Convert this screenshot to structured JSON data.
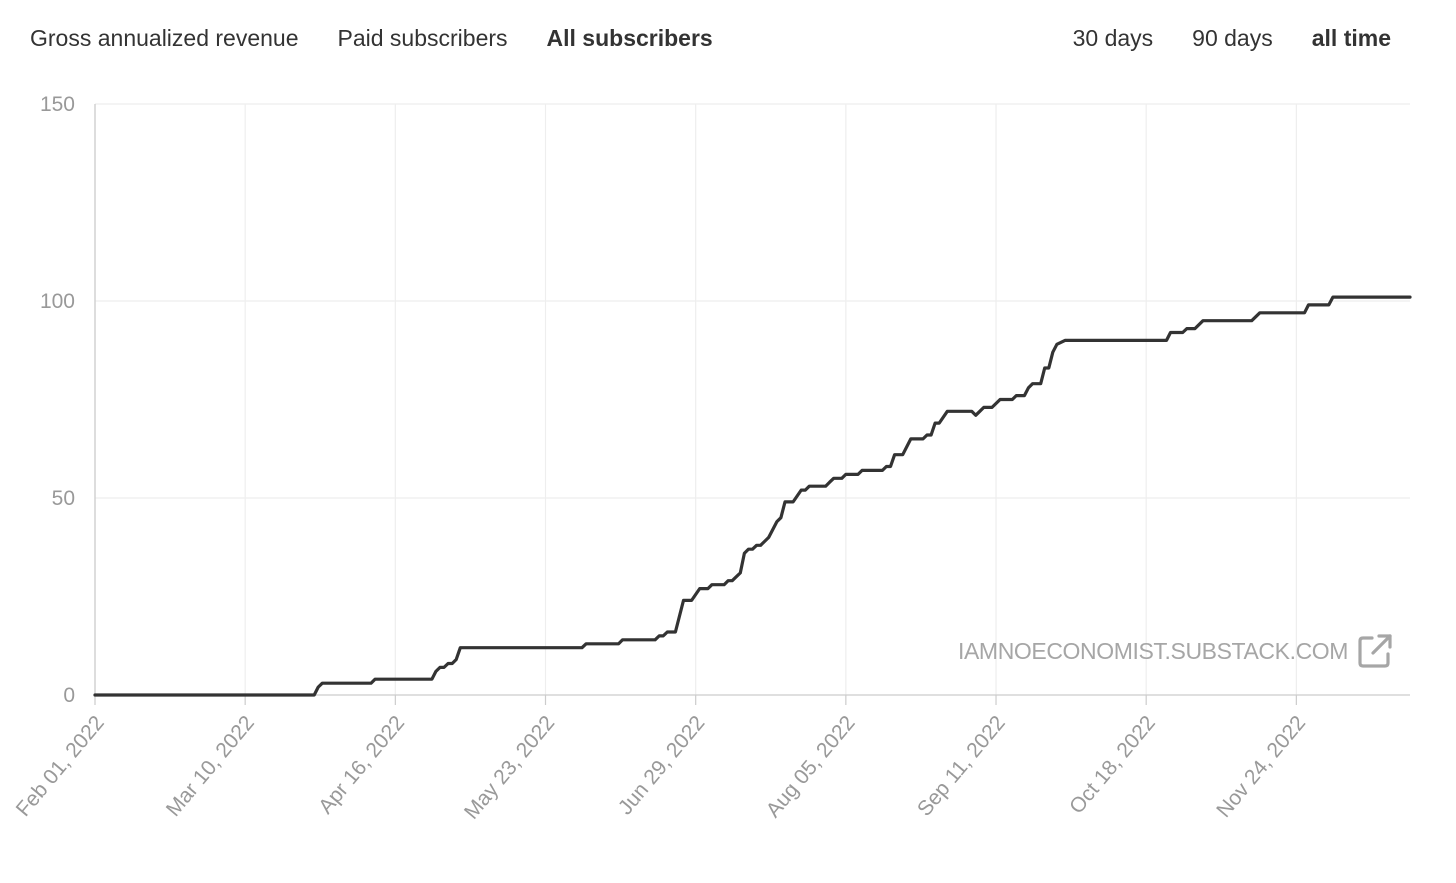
{
  "tabs_metric": [
    {
      "label": "Gross annualized revenue",
      "active": false
    },
    {
      "label": "Paid subscribers",
      "active": false
    },
    {
      "label": "All subscribers",
      "active": true
    }
  ],
  "tabs_range": [
    {
      "label": "30 days",
      "active": false
    },
    {
      "label": "90 days",
      "active": false
    },
    {
      "label": "all time",
      "active": true
    }
  ],
  "watermark": {
    "text": "IAMNOECONOMIST.SUBSTACK.COM",
    "icon": "external-link-icon"
  },
  "colors": {
    "line": "#333333",
    "grid": "#eeeeee",
    "axis": "#cccccc",
    "tick_text": "#999999"
  },
  "chart_data": {
    "type": "line",
    "title": "",
    "xlabel": "",
    "ylabel": "",
    "ylim": [
      0,
      150
    ],
    "xlim": [
      "2022-02-01",
      "2022-12-22"
    ],
    "y_ticks": [
      0,
      50,
      100,
      150
    ],
    "x_tick_labels": [
      "Feb 01, 2022",
      "Mar 10, 2022",
      "Apr 16, 2022",
      "May 23, 2022",
      "Jun 29, 2022",
      "Aug 05, 2022",
      "Sep 11, 2022",
      "Oct 18, 2022",
      "Nov 24, 2022"
    ],
    "x_tick_dates": [
      "2022-02-01",
      "2022-03-10",
      "2022-04-16",
      "2022-05-23",
      "2022-06-29",
      "2022-08-05",
      "2022-09-11",
      "2022-10-18",
      "2022-11-24"
    ],
    "grid": true,
    "legend": "none",
    "series": [
      {
        "points": [
          [
            "2022-02-01",
            0
          ],
          [
            "2022-02-15",
            0
          ],
          [
            "2022-03-01",
            0
          ],
          [
            "2022-03-15",
            0
          ],
          [
            "2022-03-27",
            0
          ],
          [
            "2022-03-28",
            2
          ],
          [
            "2022-03-29",
            3
          ],
          [
            "2022-04-10",
            3
          ],
          [
            "2022-04-11",
            4
          ],
          [
            "2022-04-25",
            4
          ],
          [
            "2022-04-26",
            6
          ],
          [
            "2022-04-27",
            7
          ],
          [
            "2022-04-28",
            7
          ],
          [
            "2022-04-29",
            8
          ],
          [
            "2022-04-30",
            8
          ],
          [
            "2022-05-01",
            9
          ],
          [
            "2022-05-02",
            12
          ],
          [
            "2022-05-15",
            12
          ],
          [
            "2022-06-01",
            12
          ],
          [
            "2022-06-02",
            13
          ],
          [
            "2022-06-10",
            13
          ],
          [
            "2022-06-11",
            14
          ],
          [
            "2022-06-19",
            14
          ],
          [
            "2022-06-20",
            15
          ],
          [
            "2022-06-21",
            15
          ],
          [
            "2022-06-22",
            16
          ],
          [
            "2022-06-24",
            16
          ],
          [
            "2022-06-26",
            24
          ],
          [
            "2022-06-28",
            24
          ],
          [
            "2022-06-30",
            27
          ],
          [
            "2022-07-02",
            27
          ],
          [
            "2022-07-03",
            28
          ],
          [
            "2022-07-06",
            28
          ],
          [
            "2022-07-07",
            29
          ],
          [
            "2022-07-08",
            29
          ],
          [
            "2022-07-10",
            31
          ],
          [
            "2022-07-11",
            36
          ],
          [
            "2022-07-12",
            37
          ],
          [
            "2022-07-13",
            37
          ],
          [
            "2022-07-14",
            38
          ],
          [
            "2022-07-15",
            38
          ],
          [
            "2022-07-17",
            40
          ],
          [
            "2022-07-19",
            44
          ],
          [
            "2022-07-20",
            45
          ],
          [
            "2022-07-21",
            49
          ],
          [
            "2022-07-23",
            49
          ],
          [
            "2022-07-25",
            52
          ],
          [
            "2022-07-26",
            52
          ],
          [
            "2022-07-27",
            53
          ],
          [
            "2022-07-31",
            53
          ],
          [
            "2022-08-01",
            54
          ],
          [
            "2022-08-02",
            55
          ],
          [
            "2022-08-04",
            55
          ],
          [
            "2022-08-05",
            56
          ],
          [
            "2022-08-08",
            56
          ],
          [
            "2022-08-09",
            57
          ],
          [
            "2022-08-14",
            57
          ],
          [
            "2022-08-15",
            58
          ],
          [
            "2022-08-16",
            58
          ],
          [
            "2022-08-17",
            61
          ],
          [
            "2022-08-19",
            61
          ],
          [
            "2022-08-21",
            65
          ],
          [
            "2022-08-24",
            65
          ],
          [
            "2022-08-25",
            66
          ],
          [
            "2022-08-26",
            66
          ],
          [
            "2022-08-27",
            69
          ],
          [
            "2022-08-28",
            69
          ],
          [
            "2022-08-30",
            72
          ],
          [
            "2022-09-05",
            72
          ],
          [
            "2022-09-06",
            71
          ],
          [
            "2022-09-07",
            72
          ],
          [
            "2022-09-08",
            73
          ],
          [
            "2022-09-10",
            73
          ],
          [
            "2022-09-12",
            75
          ],
          [
            "2022-09-15",
            75
          ],
          [
            "2022-09-16",
            76
          ],
          [
            "2022-09-18",
            76
          ],
          [
            "2022-09-19",
            78
          ],
          [
            "2022-09-20",
            79
          ],
          [
            "2022-09-22",
            79
          ],
          [
            "2022-09-23",
            83
          ],
          [
            "2022-09-24",
            83
          ],
          [
            "2022-09-25",
            87
          ],
          [
            "2022-09-26",
            89
          ],
          [
            "2022-09-28",
            90
          ],
          [
            "2022-10-01",
            90
          ],
          [
            "2022-10-15",
            90
          ],
          [
            "2022-10-23",
            90
          ],
          [
            "2022-10-24",
            92
          ],
          [
            "2022-10-27",
            92
          ],
          [
            "2022-10-28",
            93
          ],
          [
            "2022-10-30",
            93
          ],
          [
            "2022-11-01",
            95
          ],
          [
            "2022-11-13",
            95
          ],
          [
            "2022-11-15",
            97
          ],
          [
            "2022-11-26",
            97
          ],
          [
            "2022-11-27",
            99
          ],
          [
            "2022-12-02",
            99
          ],
          [
            "2022-12-03",
            101
          ],
          [
            "2022-12-22",
            101
          ]
        ]
      }
    ]
  }
}
